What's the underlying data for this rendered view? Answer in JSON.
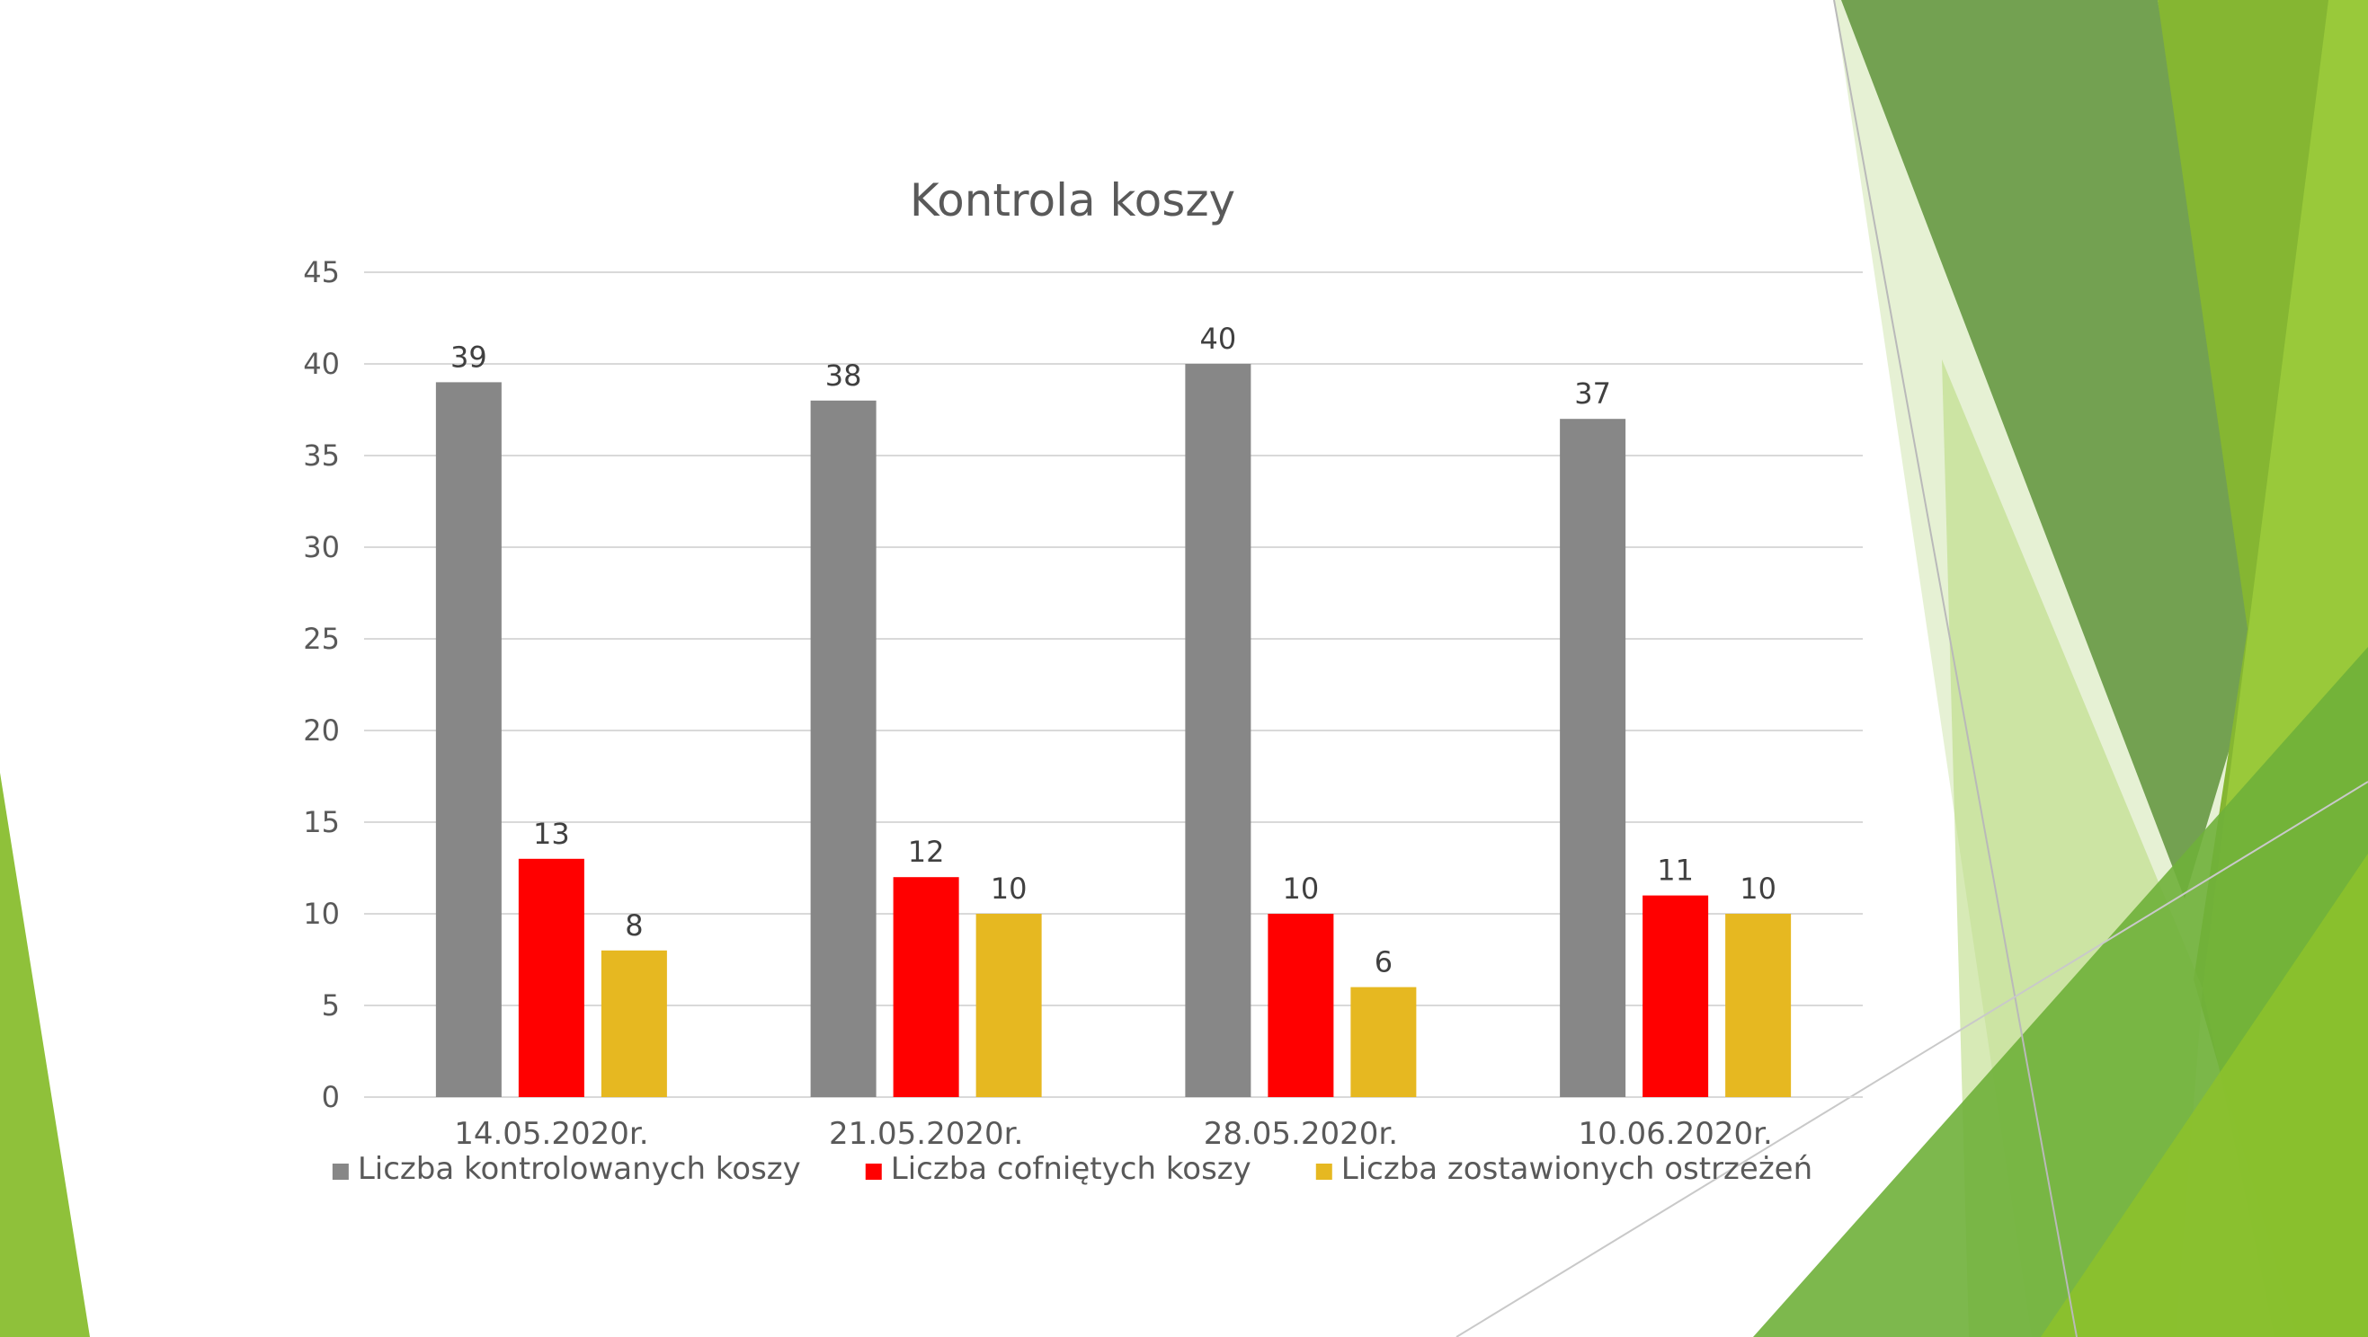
{
  "slide": {
    "decor_colors": {
      "dark_green": "#6a9a3e",
      "mid_green": "#7cb030",
      "light_green": "#9dc93c",
      "pale_green": "#d9ebbd",
      "bright_green": "#8bbf2e"
    }
  },
  "chart_data": {
    "type": "bar",
    "title": "Kontrola koszy",
    "xlabel": "",
    "ylabel": "",
    "categories": [
      "14.05.2020r.",
      "21.05.2020r.",
      "28.05.2020r.",
      "10.06.2020r."
    ],
    "series": [
      {
        "name": "Liczba kontrolowanych koszy",
        "values": [
          39,
          38,
          40,
          37
        ],
        "color": "#878787"
      },
      {
        "name": "Liczba cofniętych koszy",
        "values": [
          13,
          12,
          10,
          11
        ],
        "color": "#ff0000"
      },
      {
        "name": "Liczba zostawionych ostrzeżeń",
        "values": [
          8,
          10,
          6,
          10
        ],
        "color": "#e6b821"
      }
    ],
    "ylim": [
      0,
      45
    ],
    "yticks": [
      0,
      5,
      10,
      15,
      20,
      25,
      30,
      35,
      40,
      45
    ],
    "grid": true,
    "data_labels": true,
    "legend_position": "bottom"
  }
}
